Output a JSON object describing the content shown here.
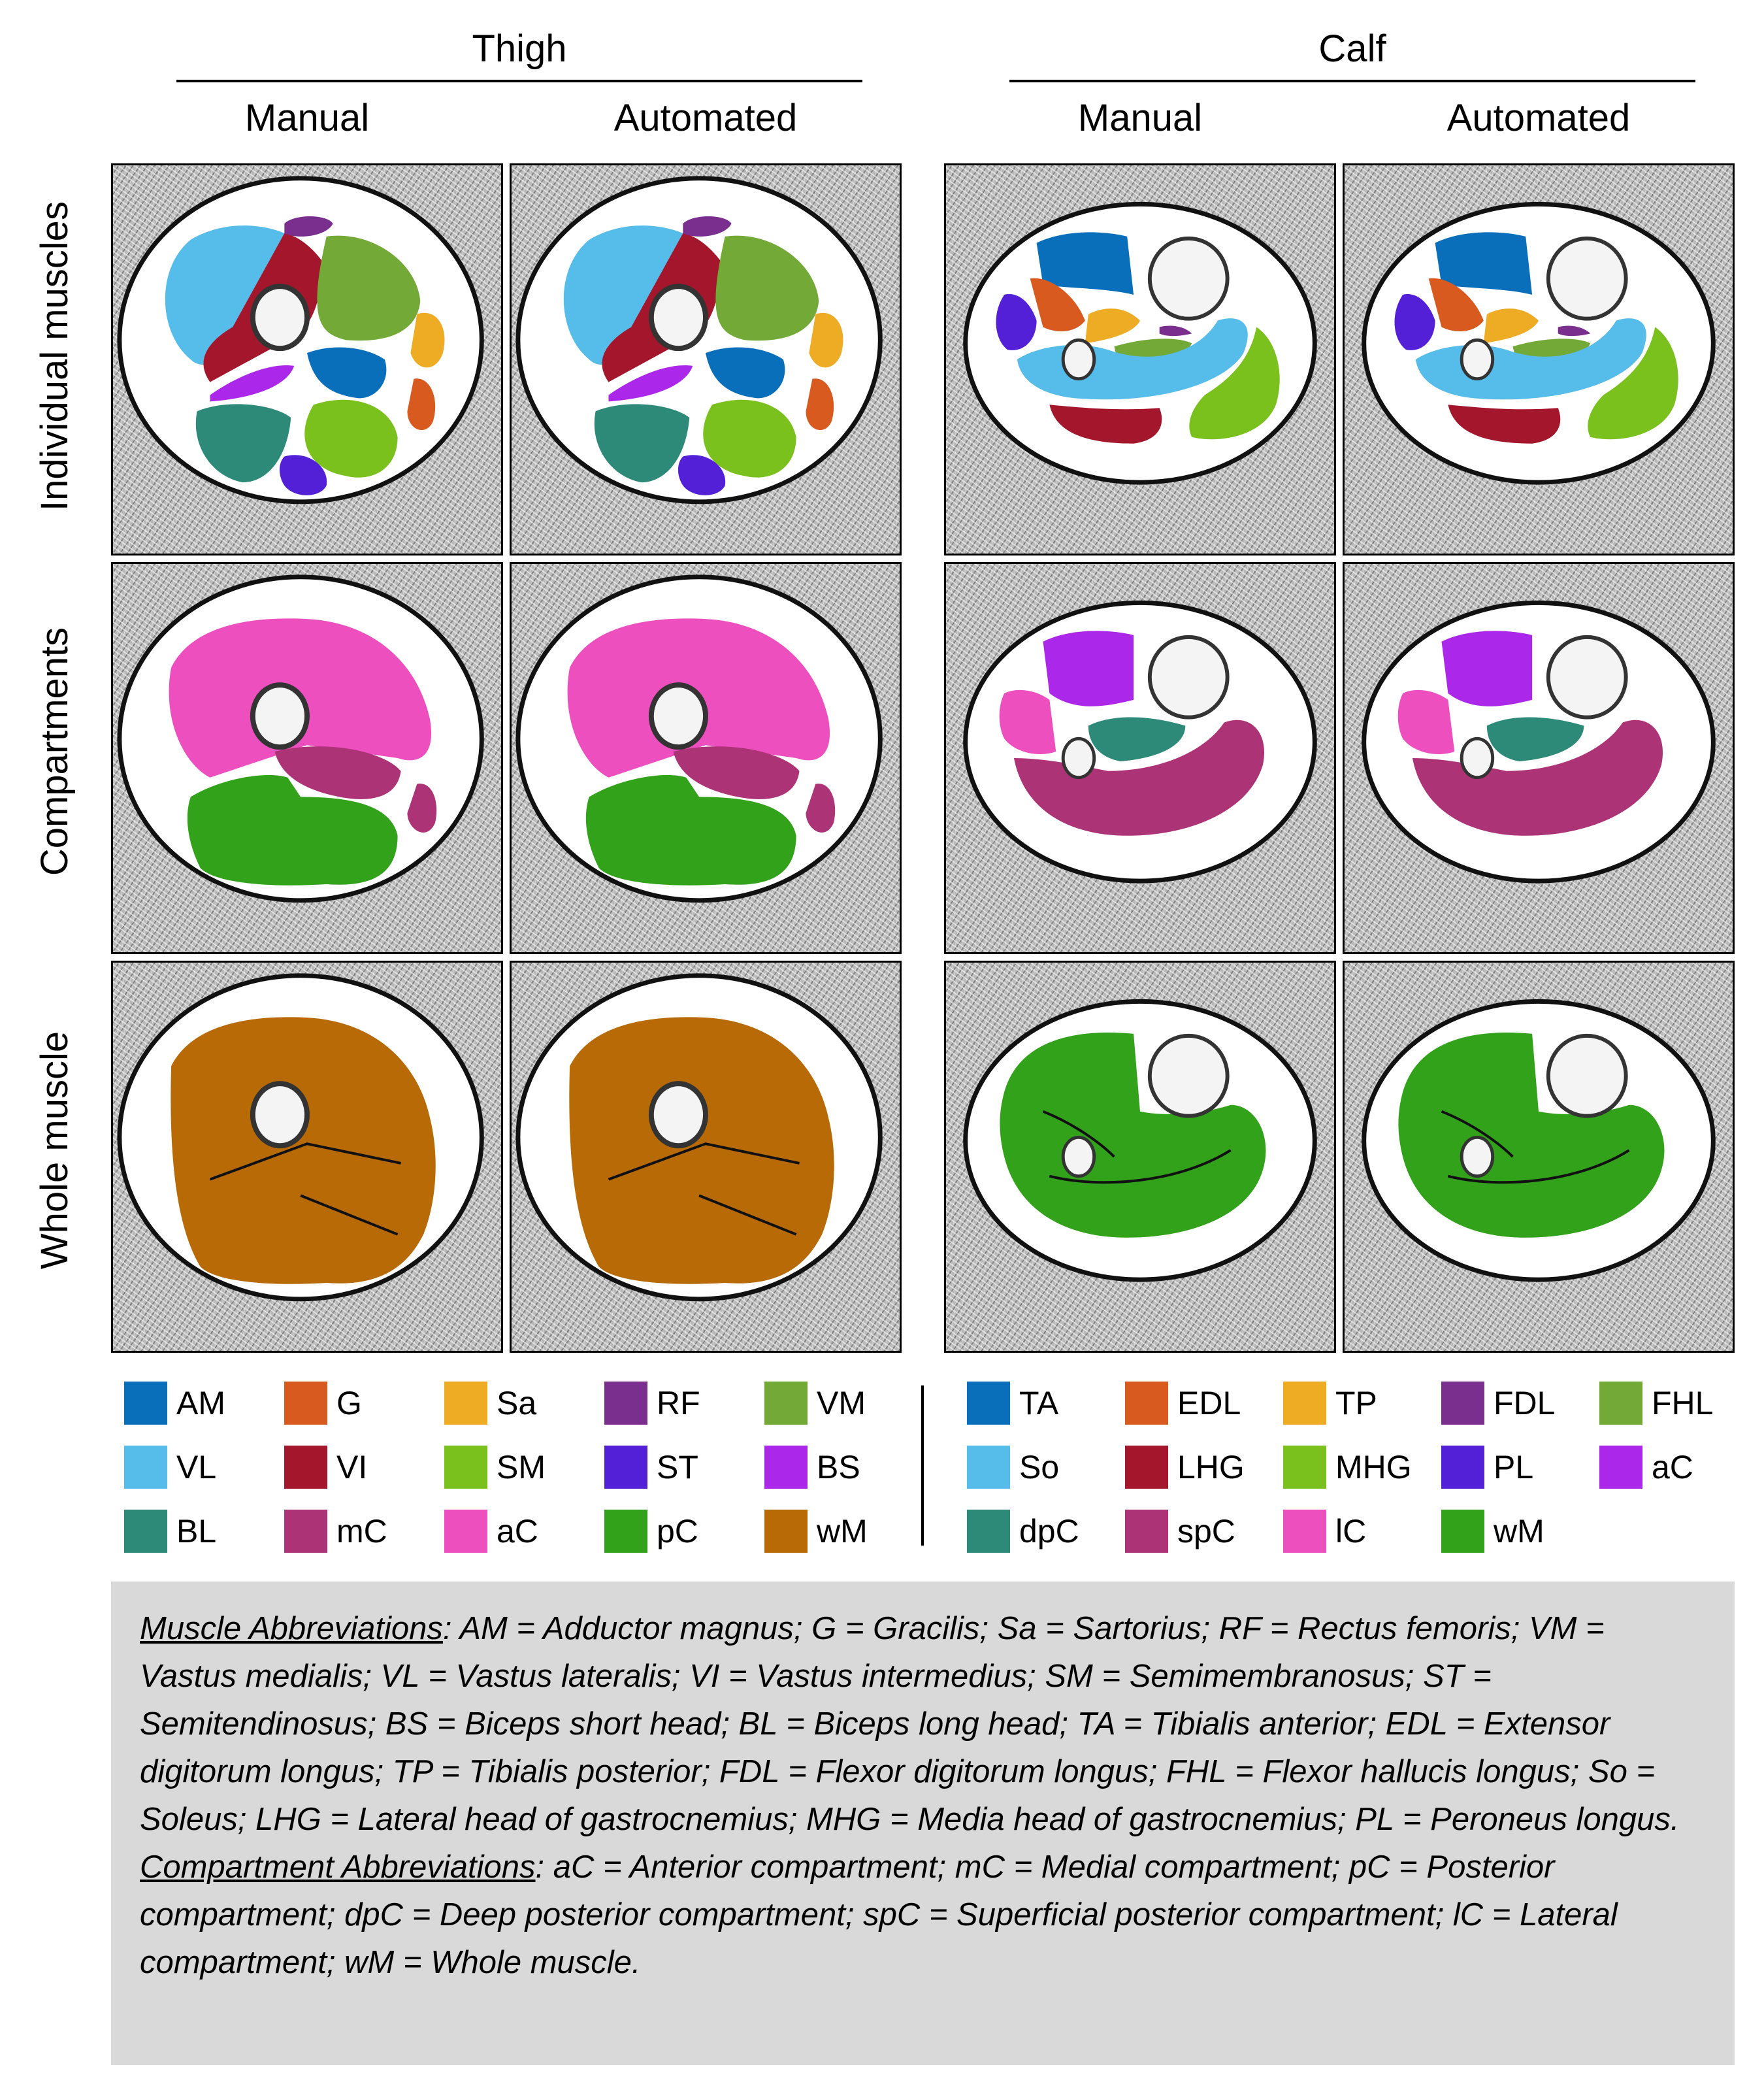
{
  "groups": {
    "thigh": "Thigh",
    "calf": "Calf"
  },
  "columns": {
    "thigh_manual": "Manual",
    "thigh_automated": "Automated",
    "calf_manual": "Manual",
    "calf_automated": "Automated"
  },
  "rows": {
    "individual": "Individual muscles",
    "compartments": "Compartments",
    "whole": "Whole muscle"
  },
  "colors": {
    "AM": "#0a6fbb",
    "G": "#d85a1e",
    "Sa": "#eeab24",
    "RF": "#7a2e8e",
    "VM": "#73a937",
    "VL": "#56bdea",
    "VI": "#a3162c",
    "SM": "#7bc11d",
    "ST": "#5320d8",
    "BS": "#ab27ea",
    "BL": "#2d8a78",
    "mC": "#ad3377",
    "aC": "#ee4fbf",
    "pC": "#33a21b",
    "wM": "#b86a06",
    "TA": "#0a6fbb",
    "EDL": "#d85a1e",
    "TP": "#eeab24",
    "FDL": "#7a2e8e",
    "FHL": "#73a937",
    "So": "#56bdea",
    "LHG": "#a3162c",
    "MHG": "#7bc11d",
    "PL": "#5320d8",
    "calf_aC": "#ab27ea",
    "dpC": "#2d8a78",
    "spC": "#ad3377",
    "lC": "#ee4fbf",
    "calf_wM": "#33a21b"
  },
  "thigh_legend": [
    {
      "label": "AM",
      "color": "#0a6fbb"
    },
    {
      "label": "G",
      "color": "#d85a1e"
    },
    {
      "label": "Sa",
      "color": "#eeab24"
    },
    {
      "label": "RF",
      "color": "#7a2e8e"
    },
    {
      "label": "VM",
      "color": "#73a937"
    },
    {
      "label": "VL",
      "color": "#56bdea"
    },
    {
      "label": "VI",
      "color": "#a3162c"
    },
    {
      "label": "SM",
      "color": "#7bc11d"
    },
    {
      "label": "ST",
      "color": "#5320d8"
    },
    {
      "label": "BS",
      "color": "#ab27ea"
    },
    {
      "label": "BL",
      "color": "#2d8a78"
    },
    {
      "label": "mC",
      "color": "#ad3377"
    },
    {
      "label": "aC",
      "color": "#ee4fbf"
    },
    {
      "label": "pC",
      "color": "#33a21b"
    },
    {
      "label": "wM",
      "color": "#b86a06"
    }
  ],
  "calf_legend": [
    {
      "label": "TA",
      "color": "#0a6fbb"
    },
    {
      "label": "EDL",
      "color": "#d85a1e"
    },
    {
      "label": "TP",
      "color": "#eeab24"
    },
    {
      "label": "FDL",
      "color": "#7a2e8e"
    },
    {
      "label": "FHL",
      "color": "#73a937"
    },
    {
      "label": "So",
      "color": "#56bdea"
    },
    {
      "label": "LHG",
      "color": "#a3162c"
    },
    {
      "label": "MHG",
      "color": "#7bc11d"
    },
    {
      "label": "PL",
      "color": "#5320d8"
    },
    {
      "label": "aC",
      "color": "#ab27ea"
    },
    {
      "label": "dpC",
      "color": "#2d8a78"
    },
    {
      "label": "spC",
      "color": "#ad3377"
    },
    {
      "label": "lC",
      "color": "#ee4fbf"
    },
    {
      "label": "wM",
      "color": "#33a21b"
    }
  ],
  "abbreviations": {
    "muscle_heading": "Muscle Abbreviations",
    "muscle_text": ": AM = Adductor magnus; G = Gracilis; Sa = Sartorius; RF = Rectus femoris; VM = Vastus medialis; VL = Vastus lateralis; VI = Vastus intermedius; SM = Semimembranosus; ST = Semitendinosus; BS = Biceps short head; BL = Biceps long head; TA = Tibialis anterior; EDL = Extensor digitorum longus; TP = Tibialis posterior; FDL = Flexor digitorum longus; FHL = Flexor hallucis longus; So = Soleus; LHG = Lateral head of gastrocnemius; MHG = Media head of gastrocnemius; PL = Peroneus longus.",
    "compartment_heading": "Compartment Abbreviations",
    "compartment_text": ": aC = Anterior compartment; mC = Medial compartment; pC = Posterior compartment; dpC = Deep posterior compartment; spC = Superficial posterior compartment; lC = Lateral compartment; wM = Whole muscle."
  }
}
